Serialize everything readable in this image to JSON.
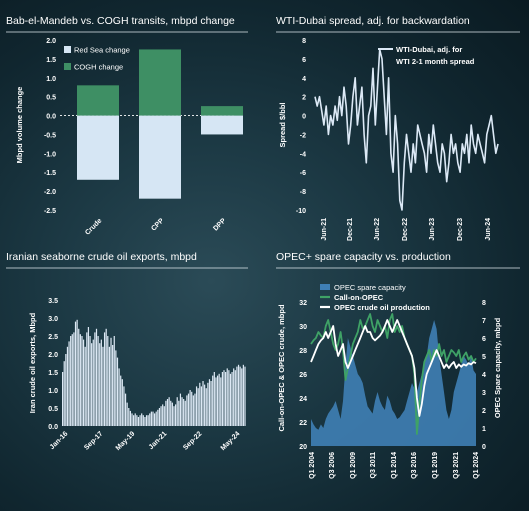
{
  "chart_data": [
    {
      "type": "bar",
      "title": "Bab-el-Mandeb vs. COGH transits, mbpd change",
      "ylabel": "Mbpd volume change",
      "ylim": [
        -2.5,
        2.0
      ],
      "yticks": [
        "2.0",
        "1.5",
        "1.0",
        "0.5",
        "0.0",
        "-0.5",
        "-1.0",
        "-1.5",
        "-2.0",
        "-2.5"
      ],
      "categories": [
        "Crude",
        "CPP",
        "DPP"
      ],
      "legend": "top-left",
      "series": [
        {
          "name": "Red Sea change",
          "color": "#d6e6f4",
          "values": [
            -1.7,
            -2.2,
            -0.5
          ]
        },
        {
          "name": "COGH change",
          "color": "#3e8f64",
          "values": [
            0.8,
            1.75,
            0.25
          ]
        }
      ]
    },
    {
      "type": "line",
      "title": "WTI-Dubai spread, adj. for backwardation",
      "ylabel": "Spread $/bbl",
      "ylim": [
        -10,
        8
      ],
      "yticks": [
        "8",
        "6",
        "4",
        "2",
        "0",
        "-2",
        "-4",
        "-6",
        "-8",
        "-10"
      ],
      "xlabels": [
        "Jun-21",
        "Dec-21",
        "Jun-22",
        "Dec-22",
        "Jun-23",
        "Dec-23",
        "Jun-24"
      ],
      "x_start": "2021-01",
      "legend": "top-right",
      "series": [
        {
          "name": "WTI-Dubai, adj. for WTI 2-1 month spread",
          "color": "#dce9f6",
          "values": [
            2,
            1,
            2,
            0.5,
            -1,
            1,
            -2,
            0,
            -1,
            1,
            -0.5,
            2,
            0,
            3,
            1,
            -3,
            -1,
            2,
            4,
            -1,
            1,
            3,
            -2,
            -5,
            0,
            1,
            5,
            -1,
            3,
            7,
            6,
            2,
            -2,
            4,
            -4,
            -6,
            0,
            -3,
            -9,
            -10,
            -5,
            -2,
            -4,
            -6,
            -3,
            -5,
            -1,
            -2,
            -3,
            -4,
            -6,
            -2,
            -4,
            -1,
            -3,
            -5,
            -6,
            -3,
            -4,
            -7,
            -5,
            -2,
            -4,
            -3,
            -5,
            -6,
            -3,
            -4,
            -2,
            -5,
            -1,
            -3,
            -4,
            -2,
            -3,
            -4,
            -5,
            -2,
            -1,
            0,
            -2,
            -4,
            -3
          ]
        }
      ]
    },
    {
      "type": "bar",
      "title": "Iranian seaborne crude oil exports, mbpd",
      "ylabel": "Iran crude oil exports, Mbpd",
      "ylim": [
        0,
        3.5
      ],
      "yticks": [
        "3.5",
        "3.0",
        "2.5",
        "2.0",
        "1.5",
        "1.0",
        "0.5",
        "0.0"
      ],
      "xlabels": [
        "Jan-16",
        "Sep-17",
        "May-19",
        "Jan-21",
        "Sep-22",
        "May-24"
      ],
      "x_start": "2016-01",
      "color": "#dde9f5",
      "values": [
        1.5,
        1.8,
        2.0,
        2.2,
        2.35,
        2.5,
        2.55,
        2.6,
        2.9,
        2.95,
        2.7,
        2.55,
        2.5,
        2.4,
        2.2,
        2.6,
        2.75,
        2.5,
        2.3,
        2.4,
        2.6,
        2.7,
        2.5,
        2.3,
        2.4,
        2.2,
        2.6,
        2.7,
        2.5,
        2.2,
        2.45,
        2.25,
        2.5,
        2.1,
        1.9,
        1.6,
        1.4,
        1.3,
        1.1,
        0.9,
        0.65,
        0.5,
        0.42,
        0.35,
        0.3,
        0.35,
        0.3,
        0.25,
        0.3,
        0.35,
        0.3,
        0.25,
        0.3,
        0.3,
        0.35,
        0.4,
        0.4,
        0.35,
        0.4,
        0.45,
        0.5,
        0.55,
        0.6,
        0.55,
        0.7,
        0.75,
        0.8,
        0.7,
        0.65,
        0.55,
        0.6,
        0.8,
        0.7,
        0.9,
        0.8,
        0.75,
        0.7,
        0.85,
        0.9,
        1.0,
        0.95,
        0.85,
        0.9,
        1.1,
        1.05,
        1.2,
        1.1,
        1.25,
        1.15,
        1.05,
        1.2,
        1.3,
        1.25,
        1.4,
        1.5,
        1.35,
        1.4,
        1.45,
        1.35,
        1.5,
        1.55,
        1.5,
        1.6,
        1.55,
        1.45,
        1.5,
        1.6,
        1.55,
        1.65,
        1.7,
        1.65,
        1.6,
        1.7,
        1.65
      ]
    },
    {
      "type": "area",
      "title": "OPEC+ spare capacity vs. production",
      "ylabel": "Call-on-OPEC & OPEC crude, mbpd",
      "y2label": "OPEC Spare capacity, mbpd",
      "ylim": [
        20,
        32
      ],
      "y2lim": [
        0,
        8
      ],
      "yticks": [
        "32",
        "30",
        "28",
        "26",
        "24",
        "22",
        "20"
      ],
      "y2ticks": [
        "8",
        "7",
        "6",
        "5",
        "4",
        "3",
        "2",
        "1",
        "0"
      ],
      "xlabels": [
        "Q1 2004",
        "Q3 2006",
        "Q1 2009",
        "Q3 2011",
        "Q1 2014",
        "Q3 2016",
        "Q1 2019",
        "Q3 2021",
        "Q1 2024"
      ],
      "x_start": "Q1 2004",
      "legend": "top-left",
      "series": [
        {
          "name": "OPEC spare capacity",
          "color": "#3f7fb5",
          "axis": "right",
          "values": [
            1.5,
            1.2,
            1.0,
            0.9,
            1.2,
            1.0,
            1.5,
            1.8,
            2.0,
            2.2,
            2.5,
            2.0,
            1.5,
            2.5,
            4.5,
            6.0,
            5.5,
            5.0,
            4.5,
            4.0,
            3.8,
            3.5,
            2.8,
            2.2,
            2.0,
            1.8,
            2.5,
            3.0,
            2.5,
            2.2,
            2.0,
            2.8,
            2.5,
            2.0,
            1.8,
            1.5,
            1.6,
            1.8,
            2.0,
            2.5,
            3.0,
            3.5,
            3.2,
            3.0,
            3.5,
            4.0,
            4.5,
            5.0,
            6.0,
            6.5,
            7.0,
            6.5,
            5.0,
            4.0,
            3.0,
            2.0,
            1.5,
            2.0,
            3.0,
            3.5,
            4.0,
            4.5,
            5.0,
            4.8,
            4.5,
            5.0,
            4.2,
            4.0
          ]
        },
        {
          "name": "Call-on-OPEC",
          "color": "#3fa266",
          "axis": "left",
          "values": [
            28.5,
            28.8,
            29.0,
            29.5,
            29.2,
            29.0,
            30.0,
            30.5,
            29.5,
            28.5,
            28.0,
            28.5,
            29.5,
            28.0,
            25.5,
            26.5,
            27.5,
            28.5,
            29.0,
            29.5,
            30.5,
            29.8,
            30.0,
            30.5,
            31.0,
            30.0,
            29.5,
            30.5,
            30.0,
            29.5,
            30.0,
            29.0,
            30.5,
            31.0,
            29.5,
            30.0,
            29.5,
            30.0,
            29.0,
            28.5,
            28.0,
            27.5,
            26.0,
            21.0,
            23.5,
            25.5,
            27.0,
            27.5,
            28.0,
            27.0,
            28.0,
            27.5,
            28.5,
            27.5,
            28.0,
            27.0,
            27.5,
            28.0,
            27.8,
            27.5,
            28.0,
            27.0,
            27.5,
            27.8,
            27.2,
            27.5,
            27.0,
            27.3
          ]
        },
        {
          "name": "OPEC crude oil production",
          "color": "#ffffff",
          "axis": "left",
          "values": [
            27.0,
            27.5,
            28.0,
            28.5,
            28.8,
            29.0,
            29.5,
            29.0,
            29.5,
            30.0,
            28.5,
            27.5,
            28.0,
            28.5,
            27.0,
            26.5,
            27.0,
            27.5,
            28.0,
            28.5,
            29.0,
            29.5,
            30.0,
            29.5,
            29.5,
            29.0,
            28.8,
            29.0,
            29.2,
            29.5,
            30.0,
            30.5,
            30.0,
            29.5,
            30.0,
            30.5,
            30.0,
            29.5,
            29.0,
            28.5,
            28.0,
            27.5,
            26.5,
            24.0,
            22.5,
            23.5,
            25.0,
            26.0,
            26.5,
            27.0,
            27.5,
            28.0,
            27.5,
            27.0,
            26.5,
            26.8,
            26.5,
            26.8,
            27.0,
            26.5,
            26.8,
            26.6,
            26.8,
            26.7,
            26.9,
            26.8,
            27.0,
            26.9
          ]
        }
      ]
    }
  ]
}
